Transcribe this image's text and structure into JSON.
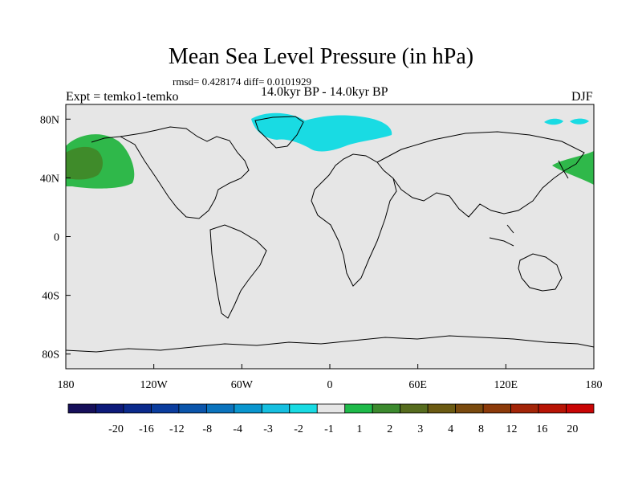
{
  "title": "Mean Sea Level Pressure (in hPa)",
  "stats": "rmsd= 0.428174 diff= 0.0101929",
  "period": "14.0kyr BP - 14.0kyr BP",
  "experiment": "Expt = temko1-temko",
  "season": "DJF",
  "map": {
    "projection": "cylindrical-equidistant",
    "lon_range": [
      -180,
      180
    ],
    "lat_range": [
      -90,
      90
    ],
    "background_color": "#e6e6e6",
    "lat_ticks": [
      {
        "value": 80,
        "label": "80N"
      },
      {
        "value": 40,
        "label": "40N"
      },
      {
        "value": 0,
        "label": "0"
      },
      {
        "value": -40,
        "label": "40S"
      },
      {
        "value": -80,
        "label": "80S"
      }
    ],
    "lon_ticks": [
      {
        "value": -180,
        "label": "180"
      },
      {
        "value": -120,
        "label": "120W"
      },
      {
        "value": -60,
        "label": "60W"
      },
      {
        "value": 0,
        "label": "0"
      },
      {
        "value": 60,
        "label": "60E"
      },
      {
        "value": 120,
        "label": "120E"
      },
      {
        "value": 180,
        "label": "180"
      }
    ]
  },
  "anomaly_regions": [
    {
      "name": "north-pacific-positive",
      "level": "1 to 2",
      "color": "#2fb84a"
    },
    {
      "name": "north-pacific-core",
      "level": "2 to 3",
      "color": "#3f8b2a"
    },
    {
      "name": "north-atlantic-negative",
      "level": "-2 to -1",
      "color": "#19dbe3"
    },
    {
      "name": "arctic-negative",
      "level": "-2 to -1",
      "color": "#19dbe3"
    }
  ],
  "colorbar": {
    "colors": [
      "#160f5a",
      "#0d1a7a",
      "#0b2a8c",
      "#0b3d9e",
      "#0b55ab",
      "#0b73bd",
      "#0a96cf",
      "#16bfe0",
      "#19dbe3",
      "#e6e6e6",
      "#1fba4a",
      "#3c8a2e",
      "#566c1e",
      "#6b5a12",
      "#7a4a0e",
      "#8c3a0a",
      "#a32508",
      "#b81405",
      "#c90505"
    ],
    "labels": [
      "-20",
      "-16",
      "-12",
      "-8",
      "-4",
      "-3",
      "-2",
      "-1",
      "1",
      "2",
      "3",
      "4",
      "8",
      "12",
      "16",
      "20"
    ]
  }
}
